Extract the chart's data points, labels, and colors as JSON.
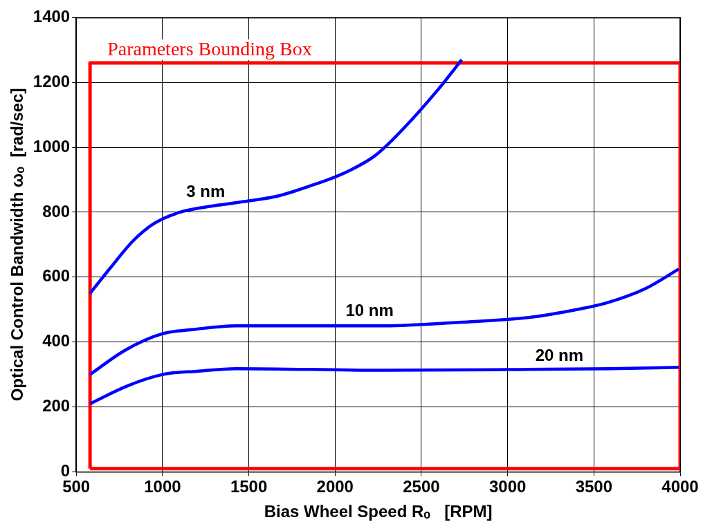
{
  "chart_data": {
    "type": "line",
    "xlabel": "Bias Wheel Speed Rₒ   [RPM]",
    "ylabel": "Optical Control Bandwidth ωₒ  [rad/sec]",
    "xlim": [
      500,
      4000
    ],
    "xticks": [
      500,
      1000,
      1500,
      2000,
      2500,
      3000,
      3500,
      4000
    ],
    "ylim": [
      0,
      1400
    ],
    "yticks": [
      0,
      200,
      400,
      600,
      800,
      1000,
      1200,
      1400
    ],
    "grid": true,
    "legend": false,
    "marker": "none",
    "line_style": "solid",
    "series": [
      {
        "name": "3 nm",
        "color": "#0000ff",
        "x": [
          580,
          700,
          826,
          950,
          1101,
          1300,
          1500,
          1669,
          1850,
          2050,
          2233,
          2400,
          2600,
          2734
        ],
        "values": [
          550,
          630,
          710,
          765,
          800,
          820,
          835,
          850,
          880,
          920,
          975,
          1060,
          1180,
          1270
        ]
      },
      {
        "name": "10 nm",
        "color": "#0000ff",
        "x": [
          580,
          784,
          997,
          1200,
          1427,
          2288,
          2700,
          3144,
          3400,
          3570,
          3800,
          3992
        ],
        "values": [
          300,
          375,
          425,
          440,
          450,
          450,
          460,
          477,
          500,
          520,
          565,
          625
        ]
      },
      {
        "name": "20 nm",
        "color": "#0000ff",
        "x": [
          580,
          797,
          1001,
          1200,
          1427,
          2279,
          3000,
          3600,
          3992
        ],
        "values": [
          210,
          265,
          300,
          310,
          318,
          313,
          315,
          318,
          322
        ]
      },
      {
        "name": "Parameters Bounding Box",
        "color": "#ff0000",
        "x": [
          580,
          580,
          4000,
          4000
        ],
        "values": [
          10,
          1260,
          1260,
          10
        ]
      },
      {
        "color": "#ff0000",
        "x": [
          580,
          4000
        ],
        "values": [
          10,
          10
        ]
      }
    ]
  }
}
